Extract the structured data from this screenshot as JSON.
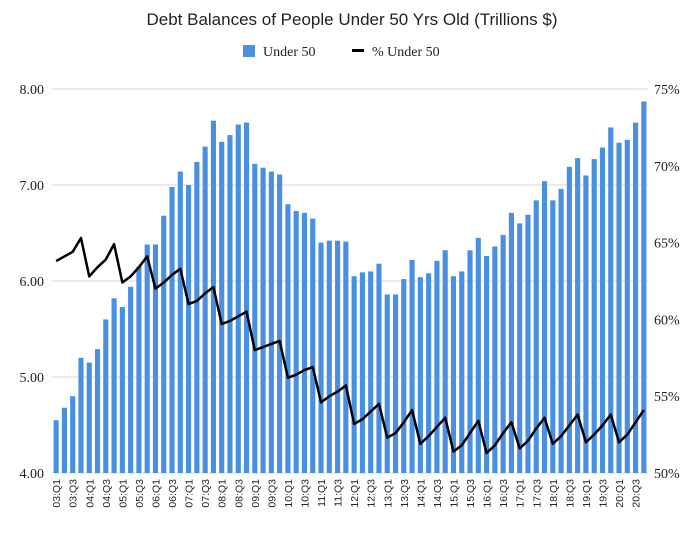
{
  "chart_data": {
    "type": "bar",
    "title": "Debt Balances of People Under 50 Yrs Old (Trillions $)",
    "legend": {
      "position": "top"
    },
    "grid": true,
    "ylim_left": [
      4.0,
      8.0
    ],
    "ylim_right": [
      50,
      75
    ],
    "y_left_ticks": [
      "4.00",
      "5.00",
      "6.00",
      "7.00",
      "8.00"
    ],
    "y_right_ticks": [
      "50%",
      "55%",
      "60%",
      "65%",
      "70%",
      "75%"
    ],
    "categories": [
      "03:Q1",
      "03:Q2",
      "03:Q3",
      "03:Q4",
      "04:Q1",
      "04:Q2",
      "04:Q3",
      "04:Q4",
      "05:Q1",
      "05:Q2",
      "05:Q3",
      "05:Q4",
      "06:Q1",
      "06:Q2",
      "06:Q3",
      "06:Q4",
      "07:Q1",
      "07:Q2",
      "07:Q3",
      "07:Q4",
      "08:Q1",
      "08:Q2",
      "08:Q3",
      "08:Q4",
      "09:Q1",
      "09:Q2",
      "09:Q3",
      "09:Q4",
      "10:Q1",
      "10:Q2",
      "10:Q3",
      "10:Q4",
      "11:Q1",
      "11:Q2",
      "11:Q3",
      "11:Q4",
      "12:Q1",
      "12:Q2",
      "12:Q3",
      "12:Q4",
      "13:Q1",
      "13:Q2",
      "13:Q3",
      "13:Q4",
      "14:Q1",
      "14:Q2",
      "14:Q3",
      "14:Q4",
      "15:Q1",
      "15:Q2",
      "15:Q3",
      "15:Q4",
      "16:Q1",
      "16:Q2",
      "16:Q3",
      "16:Q4",
      "17:Q1",
      "17:Q2",
      "17:Q3",
      "17:Q4",
      "18:Q1",
      "18:Q2",
      "18:Q3",
      "18:Q4",
      "19:Q1",
      "19:Q2",
      "19:Q3",
      "19:Q4",
      "20:Q1",
      "20:Q2",
      "20:Q3",
      "20:Q4"
    ],
    "x_tick_labels": [
      "03:Q1",
      "03:Q3",
      "04:Q1",
      "04:Q3",
      "05:Q1",
      "05:Q3",
      "06:Q1",
      "06:Q3",
      "07:Q1",
      "07:Q3",
      "08:Q1",
      "08:Q3",
      "09:Q1",
      "09:Q3",
      "10:Q1",
      "10:Q3",
      "11:Q1",
      "11:Q3",
      "12:Q1",
      "12:Q3",
      "13:Q1",
      "13:Q3",
      "14:Q1",
      "14:Q3",
      "15:Q1",
      "15:Q3",
      "16:Q1",
      "16:Q3",
      "17:Q1",
      "17:Q3",
      "18:Q1",
      "18:Q3",
      "19:Q1",
      "19:Q3",
      "20:Q1",
      "20:Q3"
    ],
    "series": [
      {
        "name": "Under 50",
        "type": "bar",
        "axis": "left",
        "color": "#4a90e2",
        "values": [
          4.55,
          4.68,
          4.8,
          5.2,
          5.15,
          5.29,
          5.6,
          5.82,
          5.73,
          5.94,
          6.15,
          6.38,
          6.38,
          6.68,
          6.98,
          7.14,
          7.0,
          7.24,
          7.4,
          7.67,
          7.45,
          7.52,
          7.63,
          7.65,
          7.22,
          7.18,
          7.14,
          7.11,
          6.8,
          6.73,
          6.71,
          6.65,
          6.4,
          6.42,
          6.42,
          6.41,
          6.05,
          6.09,
          6.1,
          6.18,
          5.86,
          5.86,
          6.02,
          6.22,
          6.04,
          6.08,
          6.21,
          6.32,
          6.05,
          6.1,
          6.32,
          6.45,
          6.26,
          6.36,
          6.48,
          6.71,
          6.6,
          6.69,
          6.84,
          7.04,
          6.84,
          6.96,
          7.19,
          7.28,
          7.1,
          7.27,
          7.39,
          7.6,
          7.44,
          7.47,
          7.65,
          7.87
        ]
      },
      {
        "name": "% Under 50",
        "type": "line",
        "axis": "right",
        "color": "#000000",
        "values": [
          63.8,
          64.1,
          64.4,
          65.3,
          62.8,
          63.4,
          63.9,
          64.9,
          62.4,
          62.8,
          63.4,
          64.1,
          62.0,
          62.4,
          62.9,
          63.3,
          61.0,
          61.2,
          61.7,
          62.1,
          59.7,
          59.9,
          60.2,
          60.5,
          58.0,
          58.2,
          58.4,
          58.6,
          56.2,
          56.4,
          56.7,
          56.9,
          54.6,
          55.0,
          55.3,
          55.7,
          53.2,
          53.5,
          54.0,
          54.5,
          52.3,
          52.6,
          53.3,
          54.1,
          51.9,
          52.4,
          53.0,
          53.6,
          51.4,
          51.8,
          52.6,
          53.4,
          51.3,
          51.8,
          52.6,
          53.3,
          51.6,
          52.1,
          52.9,
          53.6,
          51.9,
          52.4,
          53.1,
          53.8,
          52.0,
          52.5,
          53.1,
          53.8,
          52.0,
          52.5,
          53.3,
          54.1
        ]
      }
    ]
  }
}
